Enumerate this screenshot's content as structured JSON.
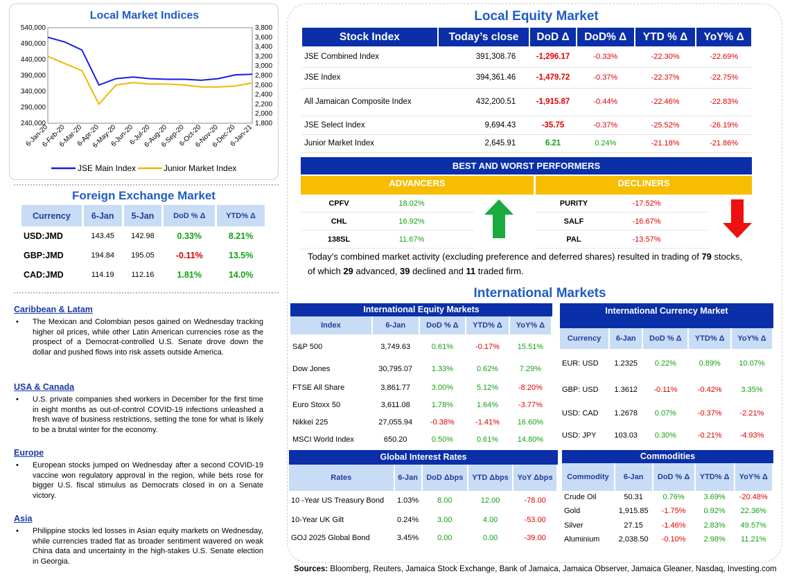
{
  "local_indices": {
    "title": "Local Market Indices",
    "left_ticks": [
      "540,000",
      "490,000",
      "440,000",
      "390,000",
      "340,000",
      "290,000",
      "240,000"
    ],
    "right_ticks": [
      "3,800",
      "3,600",
      "3,400",
      "3,200",
      "3,000",
      "2,800",
      "2,600",
      "2,400",
      "2,200",
      "2,000",
      "1,800"
    ],
    "x_ticks": [
      "6-Jan-20",
      "6-Feb-20",
      "6-Mar-20",
      "6-Apr-20",
      "6-May-20",
      "6-Jun-20",
      "6-Jul-20",
      "6-Aug-20",
      "6-Sep-20",
      "6-Oct-20",
      "6-Nov-20",
      "6-Dec-20",
      "6-Jan-21"
    ],
    "legend": [
      "JSE Main Index",
      "Junior Market Index"
    ],
    "colors": {
      "main": "#1a1ae0",
      "junior": "#f2b600"
    }
  },
  "chart_data": {
    "type": "line",
    "x": [
      "6-Jan-20",
      "6-Feb-20",
      "6-Mar-20",
      "6-Apr-20",
      "6-May-20",
      "6-Jun-20",
      "6-Jul-20",
      "6-Aug-20",
      "6-Sep-20",
      "6-Oct-20",
      "6-Nov-20",
      "6-Dec-20",
      "6-Jan-21"
    ],
    "series": [
      {
        "name": "JSE Main Index",
        "axis": "left",
        "values": [
          510000,
          495000,
          470000,
          360000,
          380000,
          385000,
          380000,
          378000,
          378000,
          375000,
          380000,
          392000,
          394000
        ]
      },
      {
        "name": "Junior Market Index",
        "axis": "right",
        "values": [
          3200,
          3050,
          2900,
          2200,
          2600,
          2650,
          2620,
          2620,
          2600,
          2560,
          2560,
          2580,
          2646
        ]
      }
    ],
    "ylim_left": [
      240000,
      540000
    ],
    "ylim_right": [
      1800,
      3800
    ]
  },
  "fx": {
    "title": "Foreign Exchange Market",
    "headers": [
      "Currency",
      "6-Jan",
      "5-Jan",
      "DoD % Δ",
      "YTD% Δ"
    ],
    "rows": [
      [
        "USD:JMD",
        "143.45",
        "142.98",
        "0.33%",
        "8.21%"
      ],
      [
        "GBP:JMD",
        "194.84",
        "195.05",
        "-0.11%",
        "13.5%"
      ],
      [
        "CAD:JMD",
        "114.19",
        "112.16",
        "1.81%",
        "14.0%"
      ]
    ]
  },
  "news": [
    {
      "heading": "Caribbean & Latam",
      "text": "The Mexican and Colombian pesos gained on Wednesday tracking higher oil prices, while other Latin American currencies rose as the prospect of a Democrat-controlled U.S. Senate drove down the dollar and pushed flows into risk assets outside America."
    },
    {
      "heading": "USA & Canada",
      "text": "U.S. private companies shed workers in December for the first time in eight months as out-of-control COVID-19 infections unleashed a fresh wave of business restrictions, setting the tone for what is likely to be a brutal winter for the economy."
    },
    {
      "heading": "Europe",
      "text": "European stocks jumped on Wednesday after a second COVID-19 vaccine won regulatory approval in the region, while bets rose for bigger U.S. fiscal stimulus as Democrats closed in on a Senate victory."
    },
    {
      "heading": "Asia",
      "text": "Philippine stocks led losses in Asian equity markets on Wednesday, while currencies traded flat as broader sentiment wavered on weak China data and uncertainty in the high-stakes U.S. Senate election in Georgia."
    }
  ],
  "local_equity": {
    "title": "Local Equity Market",
    "headers": [
      "Stock Index",
      "Today’s close",
      "DoD  Δ",
      "DoD% Δ",
      "YTD % Δ",
      "YoY% Δ"
    ],
    "rows": [
      [
        "JSE Combined Index",
        "391,308.76",
        "-1,296.17",
        "-0.33%",
        "-22.30%",
        "-22.69%"
      ],
      [
        "JSE Index",
        "394,361.46",
        "-1,479.72",
        "-0.37%",
        "-22.37%",
        "-22.75%"
      ],
      [
        "All Jamaican Composite Index",
        "432,200.51",
        "-1,915.87",
        "-0.44%",
        "-22.46%",
        "-22.83%"
      ],
      [
        "JSE Select Index",
        "9,694.43",
        "-35.75",
        "-0.37%",
        "-25.52%",
        "-26.19%"
      ],
      [
        "Junior Market Index",
        "2,645.91",
        "6.21",
        "0.24%",
        "-21.18%",
        "-21.86%"
      ]
    ]
  },
  "performers": {
    "title": "BEST AND WORST PERFORMERS",
    "advancers_label": "ADVANCERS",
    "decliners_label": "DECLINERS",
    "advancers": [
      [
        "CPFV",
        "18.02%"
      ],
      [
        "CHL",
        "16.92%"
      ],
      [
        "138SL",
        "11.67%"
      ]
    ],
    "decliners": [
      [
        "PURITY",
        "-17.52%"
      ],
      [
        "SALF",
        "-16.67%"
      ],
      [
        "PAL",
        "-13.57%"
      ]
    ]
  },
  "summary": {
    "p1": "Today’s combined market activity (excluding preference and deferred shares) resulted in trading of ",
    "n1": "79",
    "p2": " stocks, of which ",
    "n2": "29",
    "p3": " advanced, ",
    "n3": "39",
    "p4": " declined and ",
    "n4": "11",
    "p5": " traded firm."
  },
  "intl_title": "International Markets",
  "intl_equity": {
    "title": "International Equity Markets",
    "headers": [
      "Index",
      "6-Jan",
      "DoD % Δ",
      "YTD% Δ",
      "YoY% Δ"
    ],
    "rows": [
      [
        "S&P 500",
        "3,749.63",
        "0.61%",
        "-0.17%",
        "15.51%"
      ],
      [
        "Dow Jones",
        "30,795.07",
        "1.33%",
        "0.62%",
        "7.29%"
      ],
      [
        "FTSE All Share",
        "3,861.77",
        "3.00%",
        "5.12%",
        "-8.20%"
      ],
      [
        "Euro Stoxx 50",
        "3,611.08",
        "1.78%",
        "1.64%",
        "-3.77%"
      ],
      [
        "Nikkei 225",
        "27,055.94",
        "-0.38%",
        "-1.41%",
        "16.60%"
      ],
      [
        "MSCI World Index",
        "650.20",
        "0.50%",
        "0.61%",
        "14.80%"
      ]
    ]
  },
  "intl_currency": {
    "title": "International Currency Market",
    "headers": [
      "Currency",
      "6-Jan",
      "DoD % Δ",
      "YTD% Δ",
      "YoY% Δ"
    ],
    "rows": [
      [
        "EUR: USD",
        "1.2325",
        "0.22%",
        "0.89%",
        "10.07%"
      ],
      [
        "GBP: USD",
        "1.3612",
        "-0.11%",
        "-0.42%",
        "3.35%"
      ],
      [
        "USD: CAD",
        "1.2678",
        "0.07%",
        "-0.37%",
        "-2.21%"
      ],
      [
        "USD: JPY",
        "103.03",
        "0.30%",
        "-0.21%",
        "-4.93%"
      ]
    ]
  },
  "rates": {
    "title": "Global Interest Rates",
    "headers": [
      "Rates",
      "6-Jan",
      "DoD Δbps",
      "YTD Δbps",
      "YoY Δbps"
    ],
    "rows": [
      [
        "10 -Year US Treasury Bond",
        "1.03%",
        "8.00",
        "12.00",
        "-78.00"
      ],
      [
        "10-Year UK Gilt",
        "0.24%",
        "3.00",
        "4.00",
        "-53.00"
      ],
      [
        "GOJ 2025 Global Bond",
        "3.45%",
        "0.00",
        "0.00",
        "-39.00"
      ]
    ]
  },
  "commodities": {
    "title": "Commodities",
    "headers": [
      "Commodity",
      "6-Jan",
      "DoD % Δ",
      "YTD% Δ",
      "YoY% Δ"
    ],
    "rows": [
      [
        "Crude Oil",
        "50.31",
        "0.76%",
        "3.69%",
        "-20.48%"
      ],
      [
        "Gold",
        "1,915.85",
        "-1.75%",
        "0.92%",
        "22.36%"
      ],
      [
        "Silver",
        "27.15",
        "-1.46%",
        "2.83%",
        "49.57%"
      ],
      [
        "Aluminium",
        "2,038.50",
        "-0.10%",
        "2.98%",
        "11.21%"
      ]
    ]
  },
  "sources": {
    "label": "Sources:",
    "text": " Bloomberg, Reuters, Jamaica Stock Exchange, Bank of Jamaica, Jamaica Observer, Jamaica Gleaner, Nasdaq, Investing.com"
  }
}
